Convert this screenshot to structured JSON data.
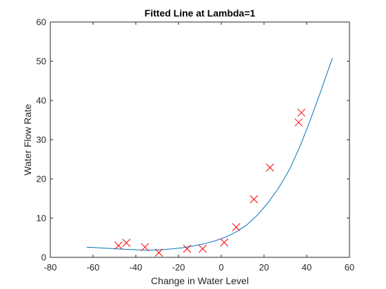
{
  "chart_data": {
    "type": "scatter",
    "title": "Fitted Line at Lambda=1",
    "xlabel": "Change in Water Level",
    "ylabel": "Water Flow Rate",
    "xlim": [
      -80,
      60
    ],
    "ylim": [
      0,
      60
    ],
    "xticks": [
      -80,
      -60,
      -40,
      -20,
      0,
      20,
      40,
      60
    ],
    "yticks": [
      0,
      10,
      20,
      30,
      40,
      50,
      60
    ],
    "grid": false,
    "box": true,
    "series": [
      {
        "type": "scatter",
        "marker": "x",
        "color": "#ff0000",
        "x": [
          -48.1,
          -44.4,
          -35.7,
          -29.2,
          -16.0,
          -8.7,
          1.4,
          7.0,
          15.3,
          22.8,
          36.2,
          37.5
        ],
        "y": [
          3.0,
          3.7,
          2.6,
          1.2,
          2.2,
          2.2,
          3.8,
          7.7,
          14.8,
          22.9,
          34.4,
          36.9
        ]
      },
      {
        "type": "line",
        "color": "#0072bd",
        "x": [
          -63,
          -58,
          -53,
          -48,
          -43,
          -38,
          -33,
          -28,
          -23,
          -18,
          -13,
          -8,
          -3,
          2,
          7,
          12,
          17,
          22,
          27,
          32,
          37,
          42,
          47,
          52
        ],
        "y": [
          2.6,
          2.45,
          2.3,
          2.15,
          2.0,
          1.9,
          1.85,
          1.95,
          2.15,
          2.45,
          2.9,
          3.45,
          4.2,
          5.15,
          6.5,
          8.3,
          10.8,
          14.0,
          17.8,
          22.5,
          28.5,
          35.5,
          43.0,
          50.8
        ]
      }
    ]
  }
}
